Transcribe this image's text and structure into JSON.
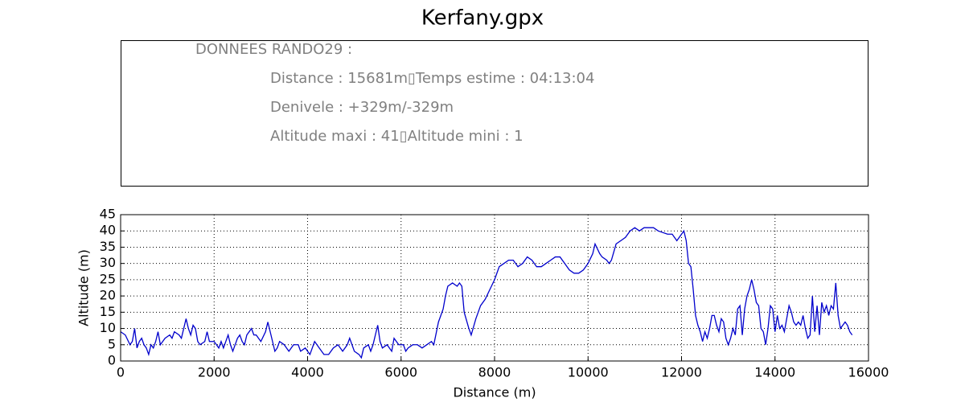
{
  "title": "Kerfany.gpx",
  "info": {
    "heading": "DONNEES RANDO29  :",
    "lines": [
      "Distance : 15681m▯Temps estime : 04:13:04",
      "Denivele : +329m/-329m",
      "Altitude maxi : 41▯Altitude mini : 1"
    ]
  },
  "chart_data": {
    "type": "line",
    "xlabel": "Distance (m)",
    "ylabel": "Altitude (m)",
    "color": "#0000cc",
    "grid": true,
    "xlim": [
      0,
      16000
    ],
    "xticks": [
      0,
      2000,
      4000,
      6000,
      8000,
      10000,
      12000,
      14000,
      16000
    ],
    "ylim": [
      0,
      45
    ],
    "yticks": [
      0,
      5,
      10,
      15,
      20,
      25,
      30,
      35,
      40,
      45
    ],
    "x": [
      0,
      100,
      200,
      250,
      300,
      350,
      400,
      450,
      500,
      550,
      600,
      650,
      700,
      750,
      800,
      850,
      950,
      1050,
      1100,
      1150,
      1250,
      1300,
      1400,
      1450,
      1500,
      1550,
      1600,
      1650,
      1700,
      1800,
      1850,
      1900,
      2000,
      2050,
      2100,
      2150,
      2200,
      2300,
      2350,
      2400,
      2500,
      2550,
      2600,
      2650,
      2700,
      2800,
      2850,
      2900,
      3000,
      3100,
      3150,
      3200,
      3300,
      3350,
      3400,
      3500,
      3550,
      3600,
      3700,
      3800,
      3850,
      3950,
      4000,
      4050,
      4150,
      4200,
      4250,
      4350,
      4450,
      4550,
      4650,
      4750,
      4850,
      4900,
      5000,
      5100,
      5150,
      5200,
      5300,
      5350,
      5400,
      5450,
      5500,
      5550,
      5600,
      5700,
      5800,
      5850,
      5900,
      5950,
      6050,
      6100,
      6150,
      6250,
      6350,
      6450,
      6550,
      6650,
      6700,
      6800,
      6900,
      6950,
      7000,
      7100,
      7200,
      7250,
      7300,
      7350,
      7450,
      7500,
      7600,
      7700,
      7800,
      7900,
      8000,
      8100,
      8200,
      8300,
      8400,
      8500,
      8600,
      8700,
      8800,
      8900,
      9000,
      9100,
      9200,
      9300,
      9400,
      9500,
      9600,
      9700,
      9800,
      9900,
      10000,
      10100,
      10150,
      10250,
      10300,
      10400,
      10450,
      10500,
      10600,
      10700,
      10800,
      10900,
      11000,
      11100,
      11200,
      11400,
      11500,
      11700,
      11800,
      11900,
      12000,
      12050,
      12100,
      12150,
      12200,
      12250,
      12300,
      12350,
      12400,
      12450,
      12500,
      12550,
      12600,
      12650,
      12700,
      12750,
      12800,
      12850,
      12900,
      12950,
      13000,
      13050,
      13100,
      13150,
      13200,
      13250,
      13300,
      13350,
      13400,
      13450,
      13500,
      13550,
      13600,
      13650,
      13700,
      13750,
      13800,
      13850,
      13900,
      13950,
      14000,
      14050,
      14100,
      14150,
      14200,
      14250,
      14300,
      14350,
      14400,
      14450,
      14500,
      14550,
      14600,
      14650,
      14700,
      14750,
      14800,
      14850,
      14900,
      14950,
      15000,
      15050,
      15100,
      15150,
      15200,
      15250,
      15300,
      15350,
      15400,
      15450,
      15500,
      15550,
      15600,
      15650
    ],
    "values": [
      9,
      8,
      5,
      6,
      10,
      4,
      6,
      7,
      5,
      4,
      2,
      5,
      4,
      6,
      9,
      5,
      7,
      8,
      7,
      9,
      8,
      7,
      13,
      10,
      8,
      11,
      10,
      6,
      5,
      6,
      9,
      6,
      6,
      5,
      4,
      6,
      4,
      8,
      5,
      3,
      7,
      8,
      6,
      5,
      8,
      10,
      8,
      8,
      6,
      9,
      12,
      9,
      3,
      4,
      6,
      5,
      4,
      3,
      5,
      5,
      3,
      4,
      3,
      2,
      6,
      5,
      4,
      2,
      2,
      4,
      5,
      3,
      5,
      7,
      3,
      2,
      1,
      4,
      5,
      3,
      5,
      8,
      11,
      6,
      4,
      5,
      3,
      7,
      6,
      5,
      5,
      3,
      4,
      5,
      5,
      4,
      5,
      6,
      5,
      12,
      16,
      20,
      23,
      24,
      23,
      24,
      23,
      15,
      10,
      8,
      13,
      17,
      19,
      22,
      25,
      29,
      30,
      31,
      31,
      29,
      30,
      32,
      31,
      29,
      29,
      30,
      31,
      32,
      32,
      30,
      28,
      27,
      27,
      28,
      30,
      33,
      36,
      33,
      32,
      31,
      30,
      31,
      36,
      37,
      38,
      40,
      41,
      40,
      41,
      41,
      40,
      39,
      39,
      37,
      39,
      40,
      37,
      30,
      29,
      22,
      14,
      11,
      9,
      6,
      9,
      7,
      10,
      14,
      14,
      11,
      9,
      13,
      12,
      7,
      5,
      7,
      10,
      8,
      16,
      17,
      8,
      16,
      20,
      22,
      25,
      22,
      18,
      17,
      10,
      9,
      5,
      10,
      17,
      16,
      9,
      14,
      10,
      11,
      9,
      13,
      17,
      15,
      12,
      11,
      12,
      11,
      14,
      10,
      7,
      8,
      20,
      9,
      17,
      8,
      18,
      15,
      17,
      14,
      17,
      16,
      24,
      14,
      10,
      11,
      12,
      11,
      9,
      8
    ]
  }
}
